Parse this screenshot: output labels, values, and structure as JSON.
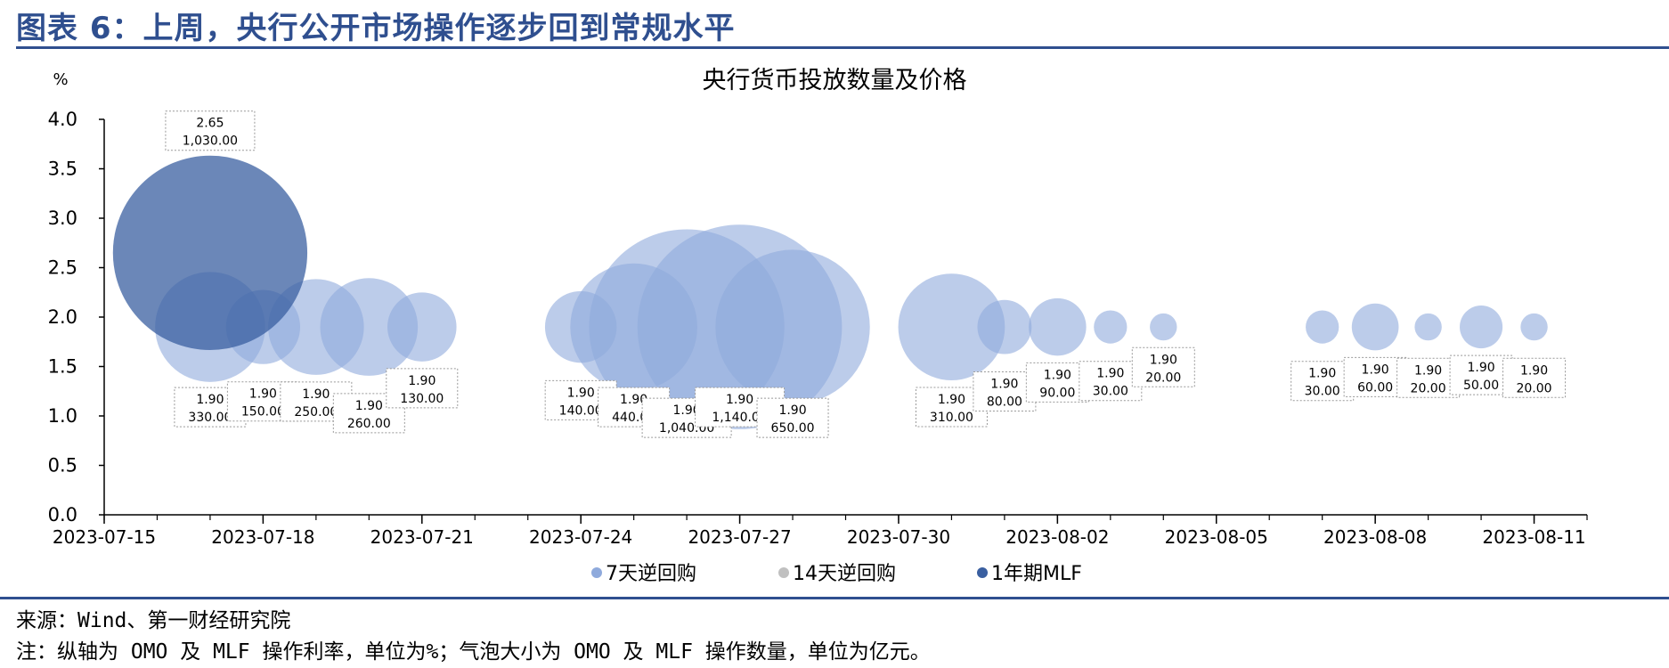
{
  "page": {
    "title": "图表 6：上周，央行公开市场操作逐步回到常规水平",
    "source": "来源：Wind、第一财经研究院",
    "note": "注：纵轴为 OMO 及 MLF 操作利率，单位为%；气泡大小为 OMO 及 MLF 操作数量，单位为亿元。"
  },
  "colors": {
    "brand": "#2f4f8f",
    "omo7": "#8faadc",
    "omo14": "#c0c0c0",
    "mlf": "#3a5fa0"
  },
  "chart_data": {
    "type": "scatter",
    "subtype": "bubble",
    "title": "央行货币投放数量及价格",
    "ylabel": "%",
    "xlabel": "",
    "ylim": [
      0,
      4
    ],
    "yticks": [
      "0.0",
      "0.5",
      "1.0",
      "1.5",
      "2.0",
      "2.5",
      "3.0",
      "3.5",
      "4.0"
    ],
    "xlim": [
      "2023-07-15",
      "2023-08-12"
    ],
    "xticks": [
      "2023-07-15",
      "2023-07-18",
      "2023-07-21",
      "2023-07-24",
      "2023-07-27",
      "2023-07-30",
      "2023-08-02",
      "2023-08-05",
      "2023-08-08",
      "2023-08-11"
    ],
    "legend_position": "bottom",
    "grid": false,
    "series": [
      {
        "name": "7天逆回购",
        "color_key": "omo7",
        "points": [
          {
            "x": "2023-07-17",
            "y": 1.9,
            "size": 330.0,
            "rate_label": "1.90",
            "size_label": "330.00"
          },
          {
            "x": "2023-07-18",
            "y": 1.9,
            "size": 150.0,
            "rate_label": "1.90",
            "size_label": "150.00"
          },
          {
            "x": "2023-07-19",
            "y": 1.9,
            "size": 250.0,
            "rate_label": "1.90",
            "size_label": "250.00"
          },
          {
            "x": "2023-07-20",
            "y": 1.9,
            "size": 260.0,
            "rate_label": "1.90",
            "size_label": "260.00"
          },
          {
            "x": "2023-07-21",
            "y": 1.9,
            "size": 130.0,
            "rate_label": "1.90",
            "size_label": "130.00"
          },
          {
            "x": "2023-07-24",
            "y": 1.9,
            "size": 140.0,
            "rate_label": "1.90",
            "size_label": "140.00"
          },
          {
            "x": "2023-07-25",
            "y": 1.9,
            "size": 440.0,
            "rate_label": "1.90",
            "size_label": "440.00"
          },
          {
            "x": "2023-07-26",
            "y": 1.9,
            "size": 1040.0,
            "rate_label": "1.90",
            "size_label": "1,040.00"
          },
          {
            "x": "2023-07-27",
            "y": 1.9,
            "size": 1140.0,
            "rate_label": "1.90",
            "size_label": "1,140.00"
          },
          {
            "x": "2023-07-28",
            "y": 1.9,
            "size": 650.0,
            "rate_label": "1.90",
            "size_label": "650.00"
          },
          {
            "x": "2023-07-31",
            "y": 1.9,
            "size": 310.0,
            "rate_label": "1.90",
            "size_label": "310.00"
          },
          {
            "x": "2023-08-01",
            "y": 1.9,
            "size": 80.0,
            "rate_label": "1.90",
            "size_label": "80.00"
          },
          {
            "x": "2023-08-02",
            "y": 1.9,
            "size": 90.0,
            "rate_label": "1.90",
            "size_label": "90.00"
          },
          {
            "x": "2023-08-03",
            "y": 1.9,
            "size": 30.0,
            "rate_label": "1.90",
            "size_label": "30.00"
          },
          {
            "x": "2023-08-04",
            "y": 1.9,
            "size": 20.0,
            "rate_label": "1.90",
            "size_label": "20.00"
          },
          {
            "x": "2023-08-07",
            "y": 1.9,
            "size": 30.0,
            "rate_label": "1.90",
            "size_label": "30.00"
          },
          {
            "x": "2023-08-08",
            "y": 1.9,
            "size": 60.0,
            "rate_label": "1.90",
            "size_label": "60.00"
          },
          {
            "x": "2023-08-09",
            "y": 1.9,
            "size": 20.0,
            "rate_label": "1.90",
            "size_label": "20.00"
          },
          {
            "x": "2023-08-10",
            "y": 1.9,
            "size": 50.0,
            "rate_label": "1.90",
            "size_label": "50.00"
          },
          {
            "x": "2023-08-11",
            "y": 1.9,
            "size": 20.0,
            "rate_label": "1.90",
            "size_label": "20.00"
          }
        ]
      },
      {
        "name": "14天逆回购",
        "color_key": "omo14",
        "points": []
      },
      {
        "name": "1年期MLF",
        "color_key": "mlf",
        "points": [
          {
            "x": "2023-07-17",
            "y": 2.65,
            "size": 1030.0,
            "rate_label": "2.65",
            "size_label": "1,030.00"
          }
        ]
      }
    ]
  }
}
